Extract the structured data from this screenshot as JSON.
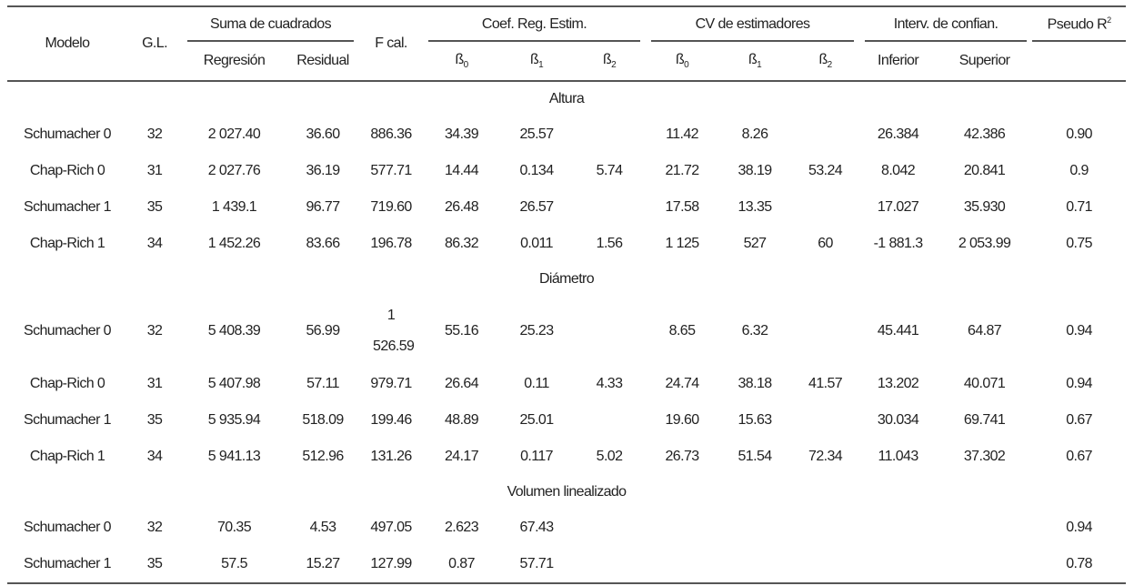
{
  "header": {
    "modelo": "Modelo",
    "gl": "G.L.",
    "suma": "Suma de cuadrados",
    "regresion": "Regresión",
    "residual": "Residual",
    "fcal": "F cal.",
    "coef": "Coef. Reg. Estim.",
    "cv": "CV de estimadores",
    "interv": "Interv. de confian.",
    "pseudo": "Pseudo R",
    "pseudo_sup": "2",
    "beta": "ß",
    "b0": "0",
    "b1": "1",
    "b2": "2",
    "inferior": "Inferior",
    "superior": "Superior"
  },
  "sections": [
    {
      "title": "Altura",
      "rows": [
        [
          "Schumacher 0",
          "32",
          "2 027.40",
          "36.60",
          "886.36",
          "34.39",
          "25.57",
          "",
          "11.42",
          "8.26",
          "",
          "26.384",
          "42.386",
          "0.90"
        ],
        [
          "Chap-Rich 0",
          "31",
          "2 027.76",
          "36.19",
          "577.71",
          "14.44",
          "0.134",
          "5.74",
          "21.72",
          "38.19",
          "53.24",
          "8.042",
          "20.841",
          "0.9"
        ],
        [
          "Schumacher 1",
          "35",
          "1 439.1",
          "96.77",
          "719.60",
          "26.48",
          "26.57",
          "",
          "17.58",
          "13.35",
          "",
          "17.027",
          "35.930",
          "0.71"
        ],
        [
          "Chap-Rich 1",
          "34",
          "1 452.26",
          "83.66",
          "196.78",
          "86.32",
          "0.011",
          "1.56",
          "1 125",
          "527",
          "60",
          "-1 881.3",
          "2 053.99",
          "0.75"
        ]
      ]
    },
    {
      "title": "Diámetro",
      "rows": [
        [
          "Schumacher 0",
          "32",
          "5 408.39",
          "56.99",
          "1 526.59",
          "55.16",
          "25.23",
          "",
          "8.65",
          "6.32",
          "",
          "45.441",
          "64.87",
          "0.94"
        ],
        [
          "Chap-Rich 0",
          "31",
          "5 407.98",
          "57.11",
          "979.71",
          "26.64",
          "0.11",
          "4.33",
          "24.74",
          "38.18",
          "41.57",
          "13.202",
          "40.071",
          "0.94"
        ],
        [
          "Schumacher 1",
          "35",
          "5 935.94",
          "518.09",
          "199.46",
          "48.89",
          "25.01",
          "",
          "19.60",
          "15.63",
          "",
          "30.034",
          "69.741",
          "0.67"
        ],
        [
          "Chap-Rich 1",
          "34",
          "5 941.13",
          "512.96",
          "131.26",
          "24.17",
          "0.117",
          "5.02",
          "26.73",
          "51.54",
          "72.34",
          "11.043",
          "37.302",
          "0.67"
        ]
      ]
    },
    {
      "title": "Volumen linealizado",
      "rows": [
        [
          "Schumacher 0",
          "32",
          "70.35",
          "4.53",
          "497.05",
          "2.623",
          "67.43",
          "",
          "",
          "",
          "",
          "",
          "",
          "0.94"
        ],
        [
          "Schumacher 1",
          "35",
          "57.5",
          "15.27",
          "127.99",
          "0.87",
          "57.71",
          "",
          "",
          "",
          "",
          "",
          "",
          "0.78"
        ]
      ]
    }
  ]
}
